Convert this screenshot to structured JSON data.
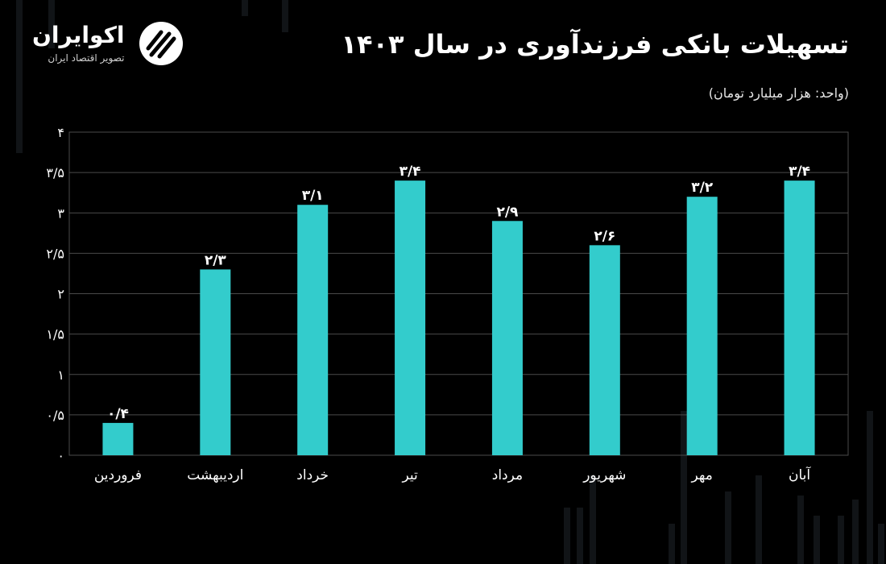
{
  "brand": {
    "name": "اکوایران",
    "tagline": "تصویر اقتصاد ایران"
  },
  "title": "تسهیلات بانکی فرزندآوری در سال ۱۴۰۳",
  "unit_note": "(واحد: هزار میلیارد تومان)",
  "colors": {
    "background": "#000000",
    "bar": "#33cccc",
    "grid": "#4a4a4a",
    "text": "#ffffff"
  },
  "chart_data": {
    "type": "bar",
    "categories": [
      "فروردین",
      "اردیبهشت",
      "خرداد",
      "تیر",
      "مرداد",
      "شهریور",
      "مهر",
      "آبان"
    ],
    "values": [
      0.4,
      2.3,
      3.1,
      3.4,
      2.9,
      2.6,
      3.2,
      3.4
    ],
    "value_labels": [
      "۰/۴",
      "۲/۳",
      "۳/۱",
      "۳/۴",
      "۲/۹",
      "۲/۶",
      "۳/۲",
      "۳/۴"
    ],
    "ylim": [
      0,
      4
    ],
    "yticks": [
      0,
      0.5,
      1,
      1.5,
      2,
      2.5,
      3,
      3.5,
      4
    ],
    "ytick_labels": [
      "۰",
      "۰/۵",
      "۱",
      "۱/۵",
      "۲",
      "۲/۵",
      "۳",
      "۳/۵",
      "۴"
    ],
    "grid": true
  }
}
